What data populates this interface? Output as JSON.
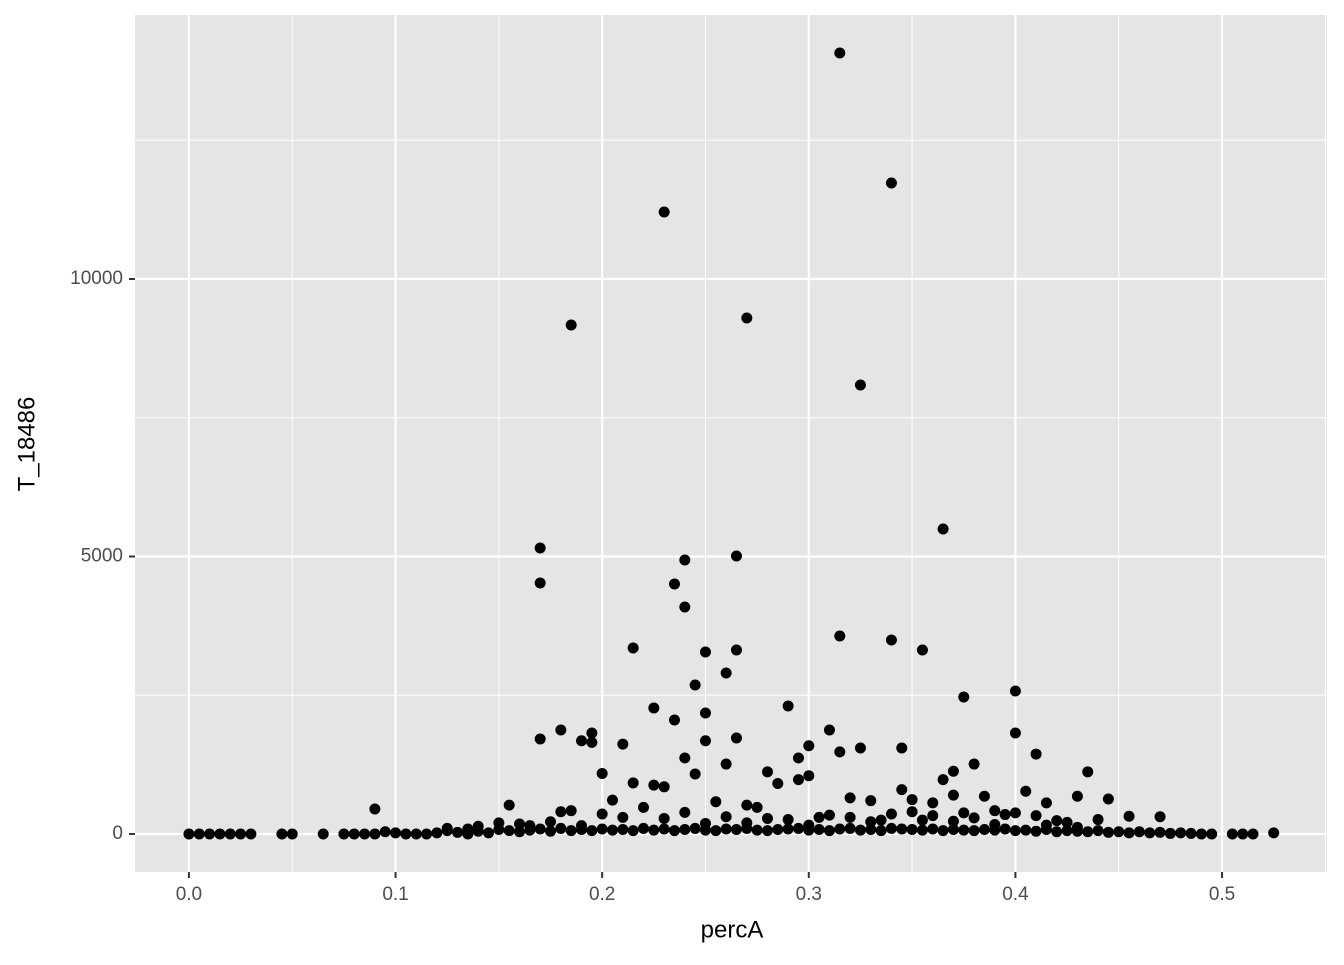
{
  "chart_data": {
    "type": "scatter",
    "x_label": "percA",
    "y_label": "T_18486",
    "xlim": [
      -0.0261,
      0.5508
    ],
    "ylim": [
      -685,
      14757
    ],
    "xticks": [
      {
        "value": 0,
        "label": "0.0"
      },
      0.1,
      0.2,
      0.3,
      0.4,
      0.5
    ],
    "yticks": [
      0,
      5000,
      10000
    ],
    "x_minor_grid": [
      0.05,
      0.15,
      0.25,
      0.35,
      0.45,
      0.55
    ],
    "y_minor_grid": [
      2500,
      7500,
      12500
    ],
    "grid": true,
    "background": "#e5e5e5",
    "series": [
      {
        "color": "#000000",
        "x": [
          0.315,
          0.34,
          0.23,
          0.185,
          0.27,
          0.325,
          0.365,
          0.17,
          0.17,
          0.24,
          0.265,
          0.235,
          0.24,
          0.315,
          0.34,
          0.355,
          0.215,
          0.25,
          0.265,
          0.26,
          0.245,
          0.4,
          0.375,
          0.29,
          0.225,
          0.25,
          0.235,
          0.31,
          0.18,
          0.195,
          0.4,
          0.17,
          0.265,
          0.19,
          0.195,
          0.21,
          0.25,
          0.3,
          0.345,
          0.325,
          0.315,
          0.41,
          0.24,
          0.295,
          0.26,
          0.38,
          0.37,
          0.435,
          0.2,
          0.245,
          0.28,
          0.3,
          0.295,
          0.365,
          0.215,
          0.285,
          0.23,
          0.225,
          0.09,
          0.155,
          0.345,
          0.405,
          0.43,
          0.445,
          0.455,
          0.47,
          0.37,
          0.385,
          0.32,
          0.33,
          0.36,
          0.35,
          0.39,
          0.415,
          0.18,
          0.185,
          0.205,
          0.22,
          0.255,
          0.27,
          0.275,
          0.305,
          0.335,
          0.375,
          0.395,
          0.42,
          0.44,
          0.165,
          0.175,
          0.2,
          0.21,
          0.23,
          0.24,
          0.26,
          0.28,
          0.29,
          0.31,
          0.32,
          0.34,
          0.35,
          0.36,
          0.38,
          0.4,
          0.41,
          0.425,
          0.15,
          0.16,
          0.19,
          0.25,
          0.27,
          0.3,
          0.33,
          0.355,
          0.37,
          0.39,
          0.415,
          0.43,
          0.14,
          0.125,
          0.135,
          0,
          0.005,
          0.01,
          0.015,
          0.02,
          0.025,
          0.03,
          0.045,
          0.05,
          0.065,
          0.075,
          0.08,
          0.085,
          0.09,
          0.095,
          0.1,
          0.105,
          0.11,
          0.115,
          0.12,
          0.125,
          0.13,
          0.135,
          0.14,
          0.145,
          0.15,
          0.155,
          0.16,
          0.165,
          0.17,
          0.175,
          0.18,
          0.185,
          0.19,
          0.195,
          0.2,
          0.205,
          0.21,
          0.215,
          0.22,
          0.225,
          0.23,
          0.235,
          0.24,
          0.245,
          0.25,
          0.255,
          0.26,
          0.265,
          0.27,
          0.275,
          0.28,
          0.285,
          0.29,
          0.295,
          0.3,
          0.305,
          0.31,
          0.315,
          0.32,
          0.325,
          0.33,
          0.335,
          0.34,
          0.345,
          0.35,
          0.355,
          0.36,
          0.365,
          0.37,
          0.375,
          0.38,
          0.385,
          0.39,
          0.395,
          0.4,
          0.405,
          0.41,
          0.415,
          0.42,
          0.425,
          0.43,
          0.435,
          0.44,
          0.445,
          0.45,
          0.455,
          0.46,
          0.465,
          0.47,
          0.475,
          0.48,
          0.485,
          0.49,
          0.495,
          0.505,
          0.51,
          0.515,
          0.525
        ],
        "y": [
          14072,
          11730,
          11207,
          9171,
          9297,
          8090,
          5495,
          5153,
          4523,
          4937,
          5009,
          4505,
          4090,
          3568,
          3495,
          3315,
          3351,
          3279,
          3315,
          2901,
          2685,
          2577,
          2468,
          2306,
          2270,
          2180,
          2054,
          1874,
          1874,
          1820,
          1820,
          1712,
          1730,
          1680,
          1650,
          1620,
          1680,
          1590,
          1550,
          1550,
          1480,
          1440,
          1370,
          1370,
          1260,
          1260,
          1130,
          1120,
          1090,
          1080,
          1120,
          1050,
          980,
          980,
          920,
          910,
          850,
          880,
          450,
          520,
          800,
          770,
          680,
          630,
          320,
          310,
          700,
          680,
          650,
          600,
          560,
          620,
          420,
          560,
          400,
          420,
          610,
          480,
          580,
          520,
          480,
          300,
          250,
          380,
          350,
          240,
          260,
          150,
          220,
          360,
          300,
          280,
          390,
          310,
          280,
          260,
          340,
          300,
          360,
          400,
          330,
          290,
          380,
          330,
          210,
          200,
          180,
          150,
          190,
          200,
          160,
          220,
          250,
          230,
          170,
          160,
          120,
          140,
          100,
          90,
          0,
          0,
          0,
          0,
          0,
          0,
          0,
          0,
          0,
          0,
          0,
          0,
          0,
          0,
          40,
          20,
          0,
          0,
          0,
          20,
          60,
          30,
          0,
          50,
          20,
          80,
          60,
          40,
          70,
          90,
          50,
          100,
          60,
          80,
          60,
          90,
          70,
          80,
          60,
          100,
          70,
          90,
          60,
          80,
          100,
          70,
          60,
          90,
          80,
          100,
          70,
          60,
          80,
          90,
          100,
          70,
          80,
          60,
          90,
          100,
          70,
          80,
          60,
          100,
          90,
          80,
          70,
          90,
          60,
          80,
          70,
          60,
          80,
          70,
          90,
          60,
          70,
          50,
          80,
          40,
          60,
          50,
          40,
          60,
          30,
          40,
          20,
          40,
          20,
          30,
          10,
          20,
          10,
          0,
          0,
          0,
          0,
          0,
          20
        ]
      }
    ]
  }
}
